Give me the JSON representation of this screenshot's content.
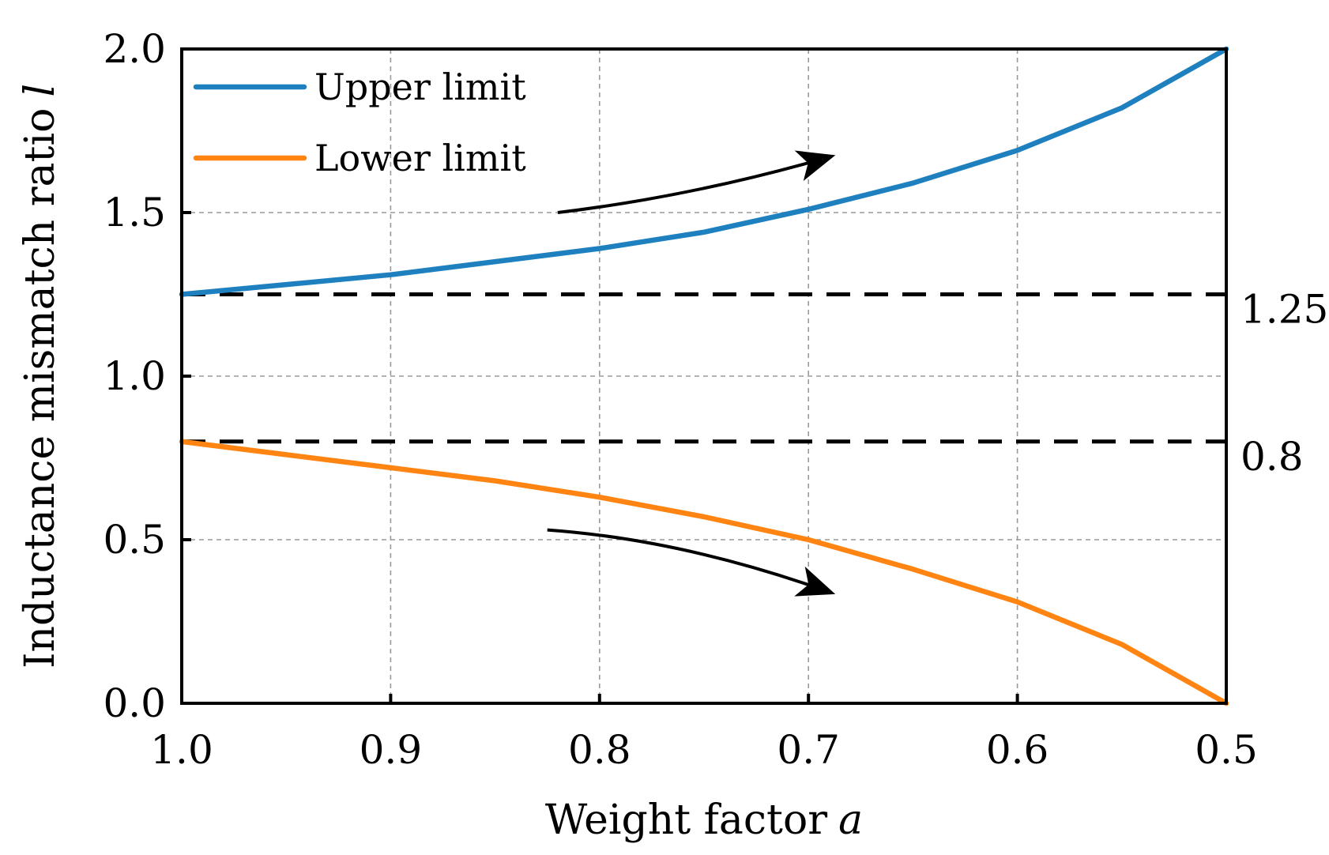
{
  "chart_data": {
    "type": "line",
    "title": "",
    "xlabel": "Weight factor",
    "xlabel_var": "a",
    "ylabel": "Inductance mismatch ratio",
    "ylabel_var": "l",
    "xlim": [
      1.0,
      0.5
    ],
    "ylim": [
      0.0,
      2.0
    ],
    "x_reversed": true,
    "xticks": [
      "1.0",
      "0.9",
      "0.8",
      "0.7",
      "0.6",
      "0.5"
    ],
    "yticks": [
      "0.0",
      "0.5",
      "1.0",
      "1.5",
      "2.0"
    ],
    "grid": true,
    "legend": "top-left",
    "series": [
      {
        "name": "Upper limit",
        "color": "#1f80c0",
        "x": [
          1.0,
          0.95,
          0.9,
          0.85,
          0.8,
          0.75,
          0.7,
          0.65,
          0.6,
          0.55,
          0.5
        ],
        "y": [
          1.25,
          1.28,
          1.31,
          1.35,
          1.39,
          1.44,
          1.51,
          1.59,
          1.69,
          1.82,
          2.0
        ]
      },
      {
        "name": "Lower limit",
        "color": "#ff8412",
        "x": [
          1.0,
          0.95,
          0.9,
          0.85,
          0.8,
          0.75,
          0.7,
          0.65,
          0.6,
          0.55,
          0.5
        ],
        "y": [
          0.8,
          0.76,
          0.72,
          0.68,
          0.63,
          0.57,
          0.5,
          0.41,
          0.31,
          0.18,
          0.0
        ]
      }
    ],
    "reference_lines": [
      {
        "y": 1.25,
        "label": "1.25"
      },
      {
        "y": 0.8,
        "label": "0.8"
      }
    ],
    "annotations": [
      {
        "type": "arrow",
        "x": [
          0.82,
          0.755,
          0.69
        ],
        "y": [
          1.5,
          1.55,
          1.67
        ]
      },
      {
        "type": "arrow",
        "x": [
          0.825,
          0.76,
          0.69
        ],
        "y": [
          0.53,
          0.5,
          0.34
        ]
      }
    ]
  }
}
